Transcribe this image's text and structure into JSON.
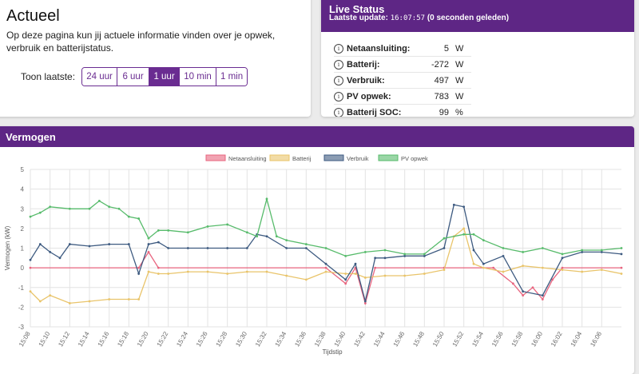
{
  "actueel": {
    "title": "Actueel",
    "description": "Op deze pagina kun jij actuele informatie vinden over je opwek, verbruik en batterijstatus.",
    "range_label": "Toon laatste:",
    "range_buttons": [
      {
        "label": "24 uur",
        "active": false
      },
      {
        "label": "6 uur",
        "active": false
      },
      {
        "label": "1 uur",
        "active": true
      },
      {
        "label": "10 min",
        "active": false
      },
      {
        "label": "1 min",
        "active": false
      }
    ]
  },
  "live_status": {
    "title": "Live Status",
    "update_label": "Laatste update:",
    "update_time": "16:07:57",
    "update_ago": "(0 seconden geleden)",
    "rows": [
      {
        "label": "Netaansluiting:",
        "value": "5",
        "unit": "W"
      },
      {
        "label": "Batterij:",
        "value": "-272",
        "unit": "W"
      },
      {
        "label": "Verbruik:",
        "value": "497",
        "unit": "W"
      },
      {
        "label": "PV opwek:",
        "value": "783",
        "unit": "W"
      },
      {
        "label": "Batterij SOC:",
        "value": "99",
        "unit": "%"
      }
    ]
  },
  "vermogen": {
    "title": "Vermogen"
  },
  "chart_data": {
    "type": "line",
    "xlabel": "Tijdstip",
    "ylabel": "Vermogen (kW)",
    "ylim": [
      -3,
      5
    ],
    "yticks": [
      -3,
      -2,
      -1,
      0,
      1,
      2,
      3,
      4,
      5
    ],
    "xlim": [
      "15:08",
      "16:08"
    ],
    "xticks": [
      "15:08",
      "15:10",
      "15:12",
      "15:14",
      "15:16",
      "15:18",
      "15:20",
      "15:22",
      "15:24",
      "15:26",
      "15:28",
      "15:30",
      "15:32",
      "15:34",
      "15:36",
      "15:38",
      "15:40",
      "15:42",
      "15:44",
      "15:46",
      "15:48",
      "15:50",
      "15:52",
      "15:54",
      "15:56",
      "15:58",
      "16:00",
      "16:02",
      "16:04",
      "16:06"
    ],
    "grid": true,
    "legend_position": "top",
    "series": [
      {
        "name": "Netaansluiting",
        "color": "#e8657f",
        "x": [
          "15:08",
          "15:19",
          "15:20",
          "15:21",
          "15:38",
          "15:40",
          "15:41",
          "15:42",
          "15:43",
          "15:50",
          "15:55",
          "15:57",
          "15:58",
          "15:59",
          "16:00",
          "16:01",
          "16:02",
          "16:08"
        ],
        "y": [
          0.0,
          0.0,
          0.8,
          0.0,
          0.0,
          -0.8,
          0.0,
          -1.8,
          0.0,
          0.0,
          0.0,
          -0.8,
          -1.4,
          -1.0,
          -1.6,
          -0.6,
          0.0,
          0.0
        ]
      },
      {
        "name": "Batterij",
        "color": "#e9c46a",
        "x": [
          "15:08",
          "15:09",
          "15:10",
          "15:12",
          "15:14",
          "15:16",
          "15:18",
          "15:19",
          "15:20",
          "15:21",
          "15:22",
          "15:24",
          "15:26",
          "15:28",
          "15:30",
          "15:32",
          "15:34",
          "15:36",
          "15:38",
          "15:40",
          "15:41",
          "15:42",
          "15:44",
          "15:46",
          "15:48",
          "15:50",
          "15:51",
          "15:52",
          "15:53",
          "15:54",
          "15:56",
          "15:58",
          "16:00",
          "16:02",
          "16:04",
          "16:06",
          "16:08"
        ],
        "y": [
          -1.2,
          -1.7,
          -1.4,
          -1.8,
          -1.7,
          -1.6,
          -1.6,
          -1.6,
          -0.2,
          -0.3,
          -0.3,
          -0.2,
          -0.2,
          -0.3,
          -0.2,
          -0.2,
          -0.4,
          -0.6,
          -0.2,
          -0.3,
          -0.3,
          -0.5,
          -0.4,
          -0.4,
          -0.3,
          -0.1,
          1.6,
          2.0,
          0.2,
          0.0,
          -0.2,
          0.1,
          0.0,
          -0.1,
          -0.2,
          -0.1,
          -0.3
        ]
      },
      {
        "name": "Verbruik",
        "color": "#3d5a80",
        "x": [
          "15:08",
          "15:09",
          "15:10",
          "15:11",
          "15:12",
          "15:14",
          "15:16",
          "15:18",
          "15:19",
          "15:20",
          "15:21",
          "15:22",
          "15:24",
          "15:26",
          "15:28",
          "15:30",
          "15:31",
          "15:32",
          "15:34",
          "15:36",
          "15:38",
          "15:40",
          "15:41",
          "15:42",
          "15:43",
          "15:44",
          "15:46",
          "15:48",
          "15:50",
          "15:51",
          "15:52",
          "15:53",
          "15:54",
          "15:56",
          "15:58",
          "16:00",
          "16:02",
          "16:04",
          "16:06",
          "16:08"
        ],
        "y": [
          0.4,
          1.2,
          0.8,
          0.5,
          1.2,
          1.1,
          1.2,
          1.2,
          -0.3,
          1.2,
          1.3,
          1.0,
          1.0,
          1.0,
          1.0,
          1.0,
          1.7,
          1.6,
          1.0,
          1.0,
          0.2,
          -0.6,
          0.2,
          -1.7,
          0.5,
          0.5,
          0.6,
          0.6,
          1.0,
          3.2,
          3.1,
          0.9,
          0.2,
          0.6,
          -1.2,
          -1.4,
          0.5,
          0.8,
          0.8,
          0.7
        ]
      },
      {
        "name": "PV opwek",
        "color": "#57bb6b",
        "x": [
          "15:08",
          "15:09",
          "15:10",
          "15:12",
          "15:14",
          "15:15",
          "15:16",
          "15:17",
          "15:18",
          "15:19",
          "15:20",
          "15:21",
          "15:22",
          "15:24",
          "15:26",
          "15:28",
          "15:30",
          "15:31",
          "15:32",
          "15:33",
          "15:34",
          "15:36",
          "15:38",
          "15:40",
          "15:42",
          "15:44",
          "15:46",
          "15:48",
          "15:50",
          "15:52",
          "15:53",
          "15:54",
          "15:56",
          "15:58",
          "16:00",
          "16:02",
          "16:04",
          "16:06",
          "16:08"
        ],
        "y": [
          2.6,
          2.8,
          3.1,
          3.0,
          3.0,
          3.4,
          3.1,
          3.0,
          2.6,
          2.5,
          1.5,
          1.9,
          1.9,
          1.8,
          2.1,
          2.2,
          1.8,
          1.6,
          3.5,
          1.6,
          1.4,
          1.2,
          1.0,
          0.6,
          0.8,
          0.9,
          0.7,
          0.7,
          1.5,
          1.7,
          1.7,
          1.4,
          1.0,
          0.8,
          1.0,
          0.7,
          0.9,
          0.9,
          1.0
        ]
      }
    ]
  }
}
